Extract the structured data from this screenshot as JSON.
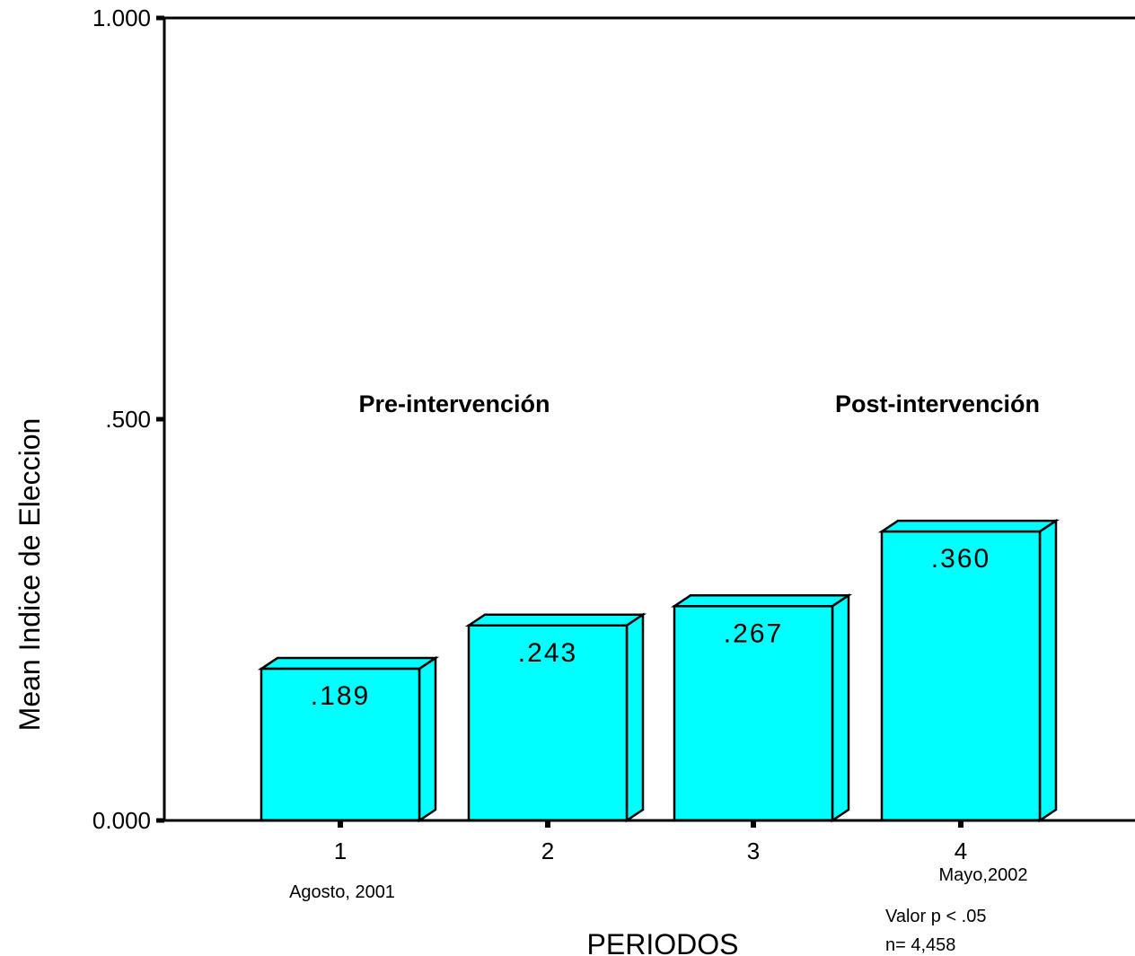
{
  "chart_data": {
    "type": "bar",
    "categories": [
      "1",
      "2",
      "3",
      "4"
    ],
    "values": [
      0.189,
      0.243,
      0.267,
      0.36
    ],
    "value_labels": [
      ".189",
      ".243",
      ".267",
      ".360"
    ],
    "ylabel": "Mean Indice de Eleccion",
    "xlabel": "PERIODOS",
    "ylim": [
      0,
      1
    ],
    "yticks": [
      0,
      0.5,
      1
    ],
    "ytick_labels": [
      "0.000",
      ".500",
      "1.000"
    ],
    "grid": false,
    "bar_style": "3d",
    "bar_color": "#00FFFF",
    "annotation_color": "#1E6FF0",
    "category_sublabels": {
      "first": "Agosto, 2001",
      "last": "Mayo,2002"
    },
    "annotations": {
      "pre": "Pre-intervención",
      "post": "Post-intervención"
    },
    "notes": [
      "Valor p < .05",
      "n= 4,458"
    ]
  }
}
